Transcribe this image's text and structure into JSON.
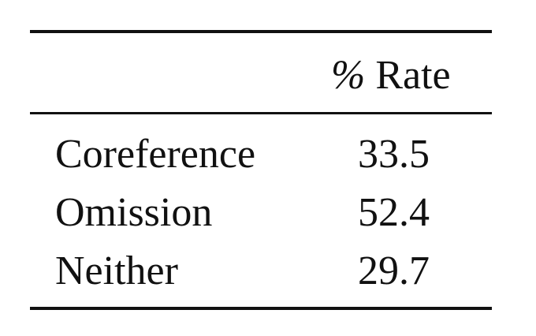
{
  "table": {
    "header": {
      "rate_symbol": "%",
      "rate_label": "Rate"
    },
    "rows": [
      {
        "label": "Coreference",
        "value": "33.5"
      },
      {
        "label": "Omission",
        "value": "52.4"
      },
      {
        "label": "Neither",
        "value": "29.7"
      }
    ]
  }
}
